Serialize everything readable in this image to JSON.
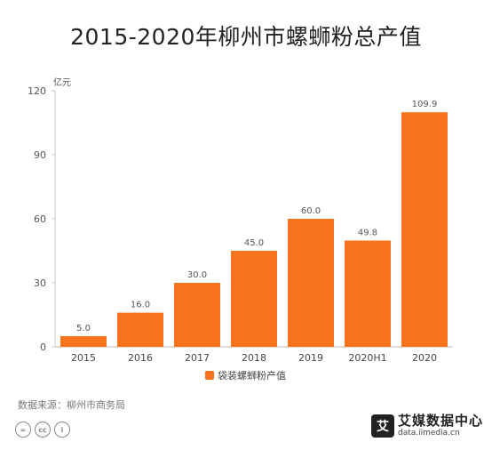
{
  "chart_data": {
    "type": "bar",
    "title": "2015-2020年柳州市螺蛳粉总产值",
    "ylabel": "亿元",
    "categories": [
      "2015",
      "2016",
      "2017",
      "2018",
      "2019",
      "2020H1",
      "2020"
    ],
    "series": [
      {
        "name": "袋装螺蛳粉产值",
        "values": [
          5.0,
          16.0,
          30.0,
          45.0,
          60.0,
          49.8,
          109.9
        ]
      }
    ],
    "data_labels": [
      "5.0",
      "16.0",
      "30.0",
      "45.0",
      "60.0",
      "49.8",
      "109.9"
    ],
    "ylim": [
      0,
      120
    ],
    "yticks": [
      0,
      30,
      60,
      90,
      120
    ],
    "grid": false,
    "legend": "bottom-center",
    "bar_color": "#F7731E"
  },
  "footer": {
    "source": "数据来源：柳州市商务局",
    "cc_icons": [
      "equal-icon",
      "cc-icon",
      "person-icon"
    ],
    "brand_logo_char": "艾",
    "brand_name": "艾媒数据中心",
    "brand_url": "data.iimedia.cn"
  }
}
